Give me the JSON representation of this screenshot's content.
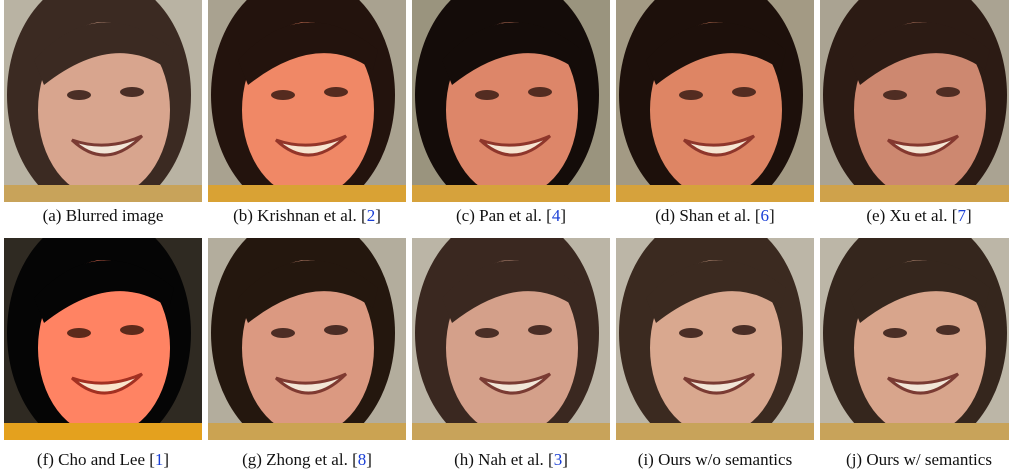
{
  "panels": [
    {
      "caption": [
        "(a) Blurred image"
      ]
    },
    {
      "caption": [
        "(b) Krishnan et al. [",
        "2",
        "]"
      ]
    },
    {
      "caption": [
        "(c) Pan et al. [",
        "4",
        "]"
      ]
    },
    {
      "caption": [
        "(d) Shan et al. [",
        "6",
        "]"
      ]
    },
    {
      "caption": [
        "(e) Xu et al. [",
        "7",
        "]"
      ]
    },
    {
      "caption": [
        "(f) Cho and Lee [",
        "1",
        "]"
      ]
    },
    {
      "caption": [
        "(g) Zhong et al. [",
        "8",
        "]"
      ]
    },
    {
      "caption": [
        "(h) Nah et al. [",
        "3",
        "]"
      ]
    },
    {
      "caption": [
        "(i) Ours w/o semantics"
      ]
    },
    {
      "caption": [
        "(j) Ours w/ semantics"
      ]
    }
  ]
}
